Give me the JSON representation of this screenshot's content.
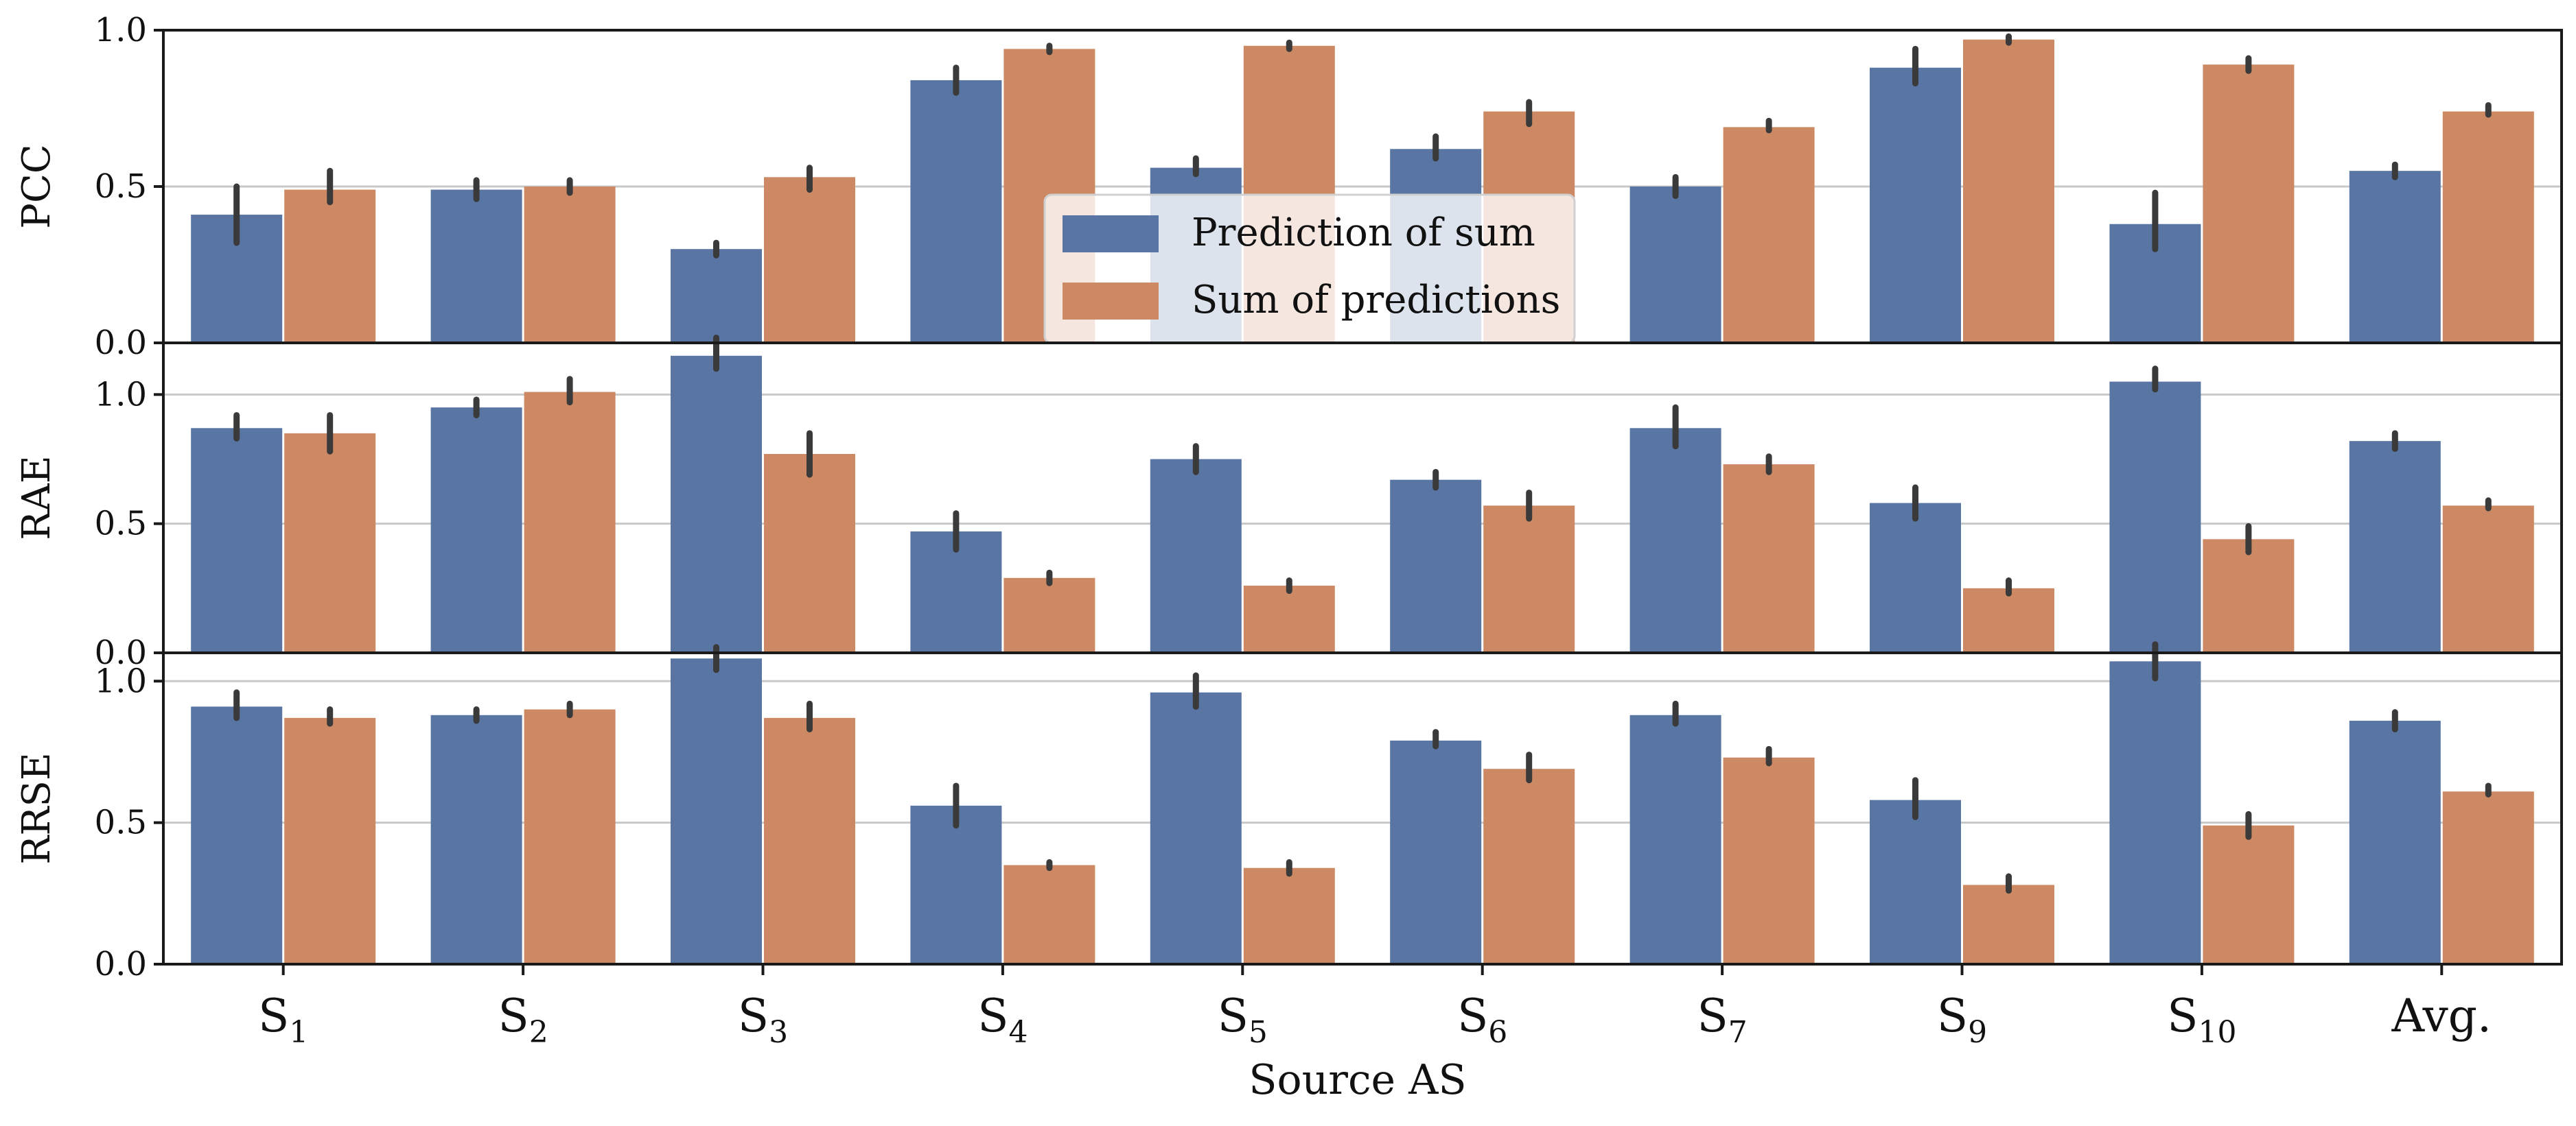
{
  "chart_data": {
    "type": "bar",
    "xlabel": "Source AS",
    "categories": [
      {
        "base": "S",
        "sub": "1"
      },
      {
        "base": "S",
        "sub": "2"
      },
      {
        "base": "S",
        "sub": "3"
      },
      {
        "base": "S",
        "sub": "4"
      },
      {
        "base": "S",
        "sub": "5"
      },
      {
        "base": "S",
        "sub": "6"
      },
      {
        "base": "S",
        "sub": "7"
      },
      {
        "base": "S",
        "sub": "9"
      },
      {
        "base": "S",
        "sub": "10"
      },
      {
        "base": "Avg.",
        "sub": ""
      }
    ],
    "legend": {
      "position": "center",
      "entries": [
        "Prediction of sum",
        "Sum of predictions"
      ]
    },
    "colors": {
      "series_0": "#5875a4",
      "series_1": "#cc8963",
      "error_bar": "#3a3a3a"
    },
    "panels": [
      {
        "ylabel": "PCC",
        "ylim": [
          0,
          1.0
        ],
        "yticks": [
          0.0,
          0.5,
          1.0
        ],
        "yticklabels": [
          "0.0",
          "0.5",
          "1.0"
        ],
        "show_legend": true,
        "series": [
          {
            "name": "Prediction of sum",
            "values": [
              0.41,
              0.49,
              0.3,
              0.84,
              0.56,
              0.62,
              0.5,
              0.88,
              0.38,
              0.55
            ],
            "err_low": [
              0.32,
              0.46,
              0.28,
              0.8,
              0.54,
              0.59,
              0.47,
              0.83,
              0.3,
              0.53
            ],
            "err_high": [
              0.5,
              0.52,
              0.32,
              0.88,
              0.59,
              0.66,
              0.53,
              0.94,
              0.48,
              0.57
            ]
          },
          {
            "name": "Sum of predictions",
            "values": [
              0.49,
              0.5,
              0.53,
              0.94,
              0.95,
              0.74,
              0.69,
              0.97,
              0.89,
              0.74
            ],
            "err_low": [
              0.45,
              0.48,
              0.49,
              0.93,
              0.94,
              0.7,
              0.68,
              0.96,
              0.87,
              0.73
            ],
            "err_high": [
              0.55,
              0.52,
              0.56,
              0.95,
              0.96,
              0.77,
              0.71,
              0.98,
              0.91,
              0.76
            ]
          }
        ]
      },
      {
        "ylabel": "RAE",
        "ylim": [
          0,
          1.2
        ],
        "yticks": [
          0.0,
          0.5,
          1.0
        ],
        "yticklabels": [
          "0.0",
          "0.5",
          "1.0"
        ],
        "show_legend": false,
        "series": [
          {
            "name": "Prediction of sum",
            "values": [
              0.87,
              0.95,
              1.15,
              0.47,
              0.75,
              0.67,
              0.87,
              0.58,
              1.05,
              0.82
            ],
            "err_low": [
              0.83,
              0.92,
              1.1,
              0.4,
              0.7,
              0.64,
              0.8,
              0.52,
              1.02,
              0.79
            ],
            "err_high": [
              0.92,
              0.98,
              1.22,
              0.54,
              0.8,
              0.7,
              0.95,
              0.64,
              1.1,
              0.85
            ]
          },
          {
            "name": "Sum of predictions",
            "values": [
              0.85,
              1.01,
              0.77,
              0.29,
              0.26,
              0.57,
              0.73,
              0.25,
              0.44,
              0.57
            ],
            "err_low": [
              0.78,
              0.97,
              0.69,
              0.27,
              0.24,
              0.52,
              0.7,
              0.23,
              0.39,
              0.56
            ],
            "err_high": [
              0.92,
              1.06,
              0.85,
              0.31,
              0.28,
              0.62,
              0.76,
              0.28,
              0.49,
              0.59
            ]
          }
        ]
      },
      {
        "ylabel": "RRSE",
        "ylim": [
          0,
          1.1
        ],
        "yticks": [
          0.0,
          0.5,
          1.0
        ],
        "yticklabels": [
          "0.0",
          "0.5",
          "1.0"
        ],
        "show_legend": false,
        "series": [
          {
            "name": "Prediction of sum",
            "values": [
              0.91,
              0.88,
              1.08,
              0.56,
              0.96,
              0.79,
              0.88,
              0.58,
              1.07,
              0.86
            ],
            "err_low": [
              0.87,
              0.86,
              1.04,
              0.49,
              0.91,
              0.77,
              0.85,
              0.52,
              1.01,
              0.83
            ],
            "err_high": [
              0.96,
              0.9,
              1.12,
              0.63,
              1.02,
              0.82,
              0.92,
              0.65,
              1.13,
              0.89
            ]
          },
          {
            "name": "Sum of predictions",
            "values": [
              0.87,
              0.9,
              0.87,
              0.35,
              0.34,
              0.69,
              0.73,
              0.28,
              0.49,
              0.61
            ],
            "err_low": [
              0.85,
              0.88,
              0.83,
              0.34,
              0.32,
              0.65,
              0.71,
              0.26,
              0.45,
              0.6
            ],
            "err_high": [
              0.9,
              0.92,
              0.92,
              0.36,
              0.36,
              0.74,
              0.76,
              0.31,
              0.53,
              0.63
            ]
          }
        ]
      }
    ]
  }
}
